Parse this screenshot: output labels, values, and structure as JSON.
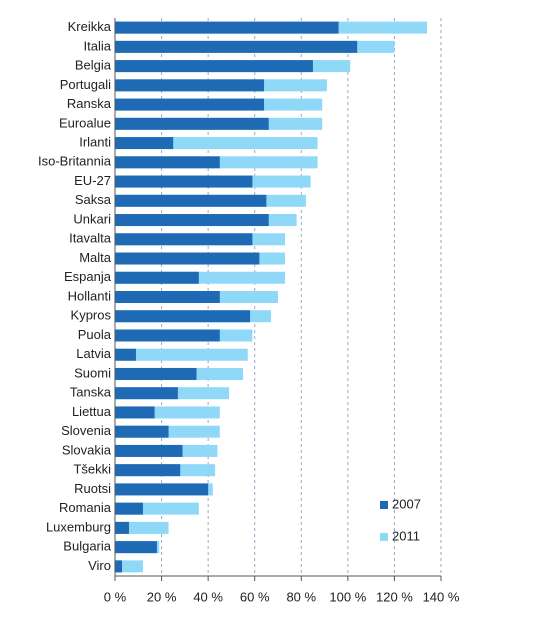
{
  "chart_data": {
    "type": "barh",
    "categories": [
      "Kreikka",
      "Italia",
      "Belgia",
      "Portugali",
      "Ranska",
      "Euroalue",
      "Irlanti",
      "Iso-Britannia",
      "EU-27",
      "Saksa",
      "Unkari",
      "Itavalta",
      "Malta",
      "Espanja",
      "Hollanti",
      "Kypros",
      "Puola",
      "Latvia",
      "Suomi",
      "Tanska",
      "Liettua",
      "Slovenia",
      "Slovakia",
      "Tšekki",
      "Ruotsi",
      "Romania",
      "Luxemburg",
      "Bulgaria",
      "Viro"
    ],
    "series": [
      {
        "name": "2007",
        "color": "#1f6ab5",
        "values": [
          96,
          104,
          85,
          64,
          64,
          66,
          25,
          45,
          59,
          65,
          66,
          59,
          62,
          36,
          45,
          58,
          45,
          9,
          35,
          27,
          17,
          23,
          29,
          28,
          40,
          12,
          6,
          18,
          3
        ]
      },
      {
        "name": "2011",
        "color": "#8fd8f8",
        "values": [
          134,
          120,
          101,
          91,
          89,
          89,
          87,
          87,
          84,
          82,
          78,
          73,
          73,
          73,
          70,
          67,
          59,
          57,
          55,
          49,
          45,
          45,
          44,
          43,
          42,
          36,
          23,
          19,
          12
        ]
      }
    ],
    "xlim": [
      0,
      140
    ],
    "xticks": [
      {
        "value": 0,
        "label": "0 %"
      },
      {
        "value": 20,
        "label": "20 %"
      },
      {
        "value": 40,
        "label": "40 %"
      },
      {
        "value": 60,
        "label": "60 %"
      },
      {
        "value": 80,
        "label": "80 %"
      },
      {
        "value": 100,
        "label": "100 %"
      },
      {
        "value": 120,
        "label": "120 %"
      },
      {
        "value": 140,
        "label": "140 %"
      }
    ],
    "grid": true,
    "legend": "lower right"
  }
}
